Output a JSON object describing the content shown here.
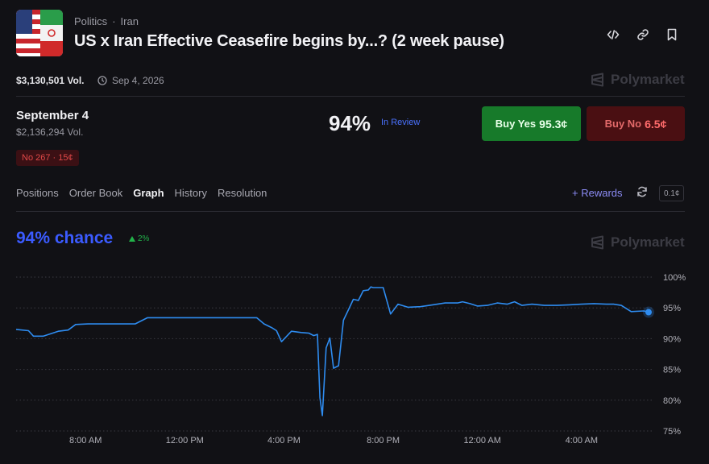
{
  "header": {
    "breadcrumb": [
      "Politics",
      "Iran"
    ],
    "title": "US x Iran Effective Ceasefire begins by...? (2 week pause)",
    "volume": "$3,130,501 Vol.",
    "end_date": "Sep 4, 2026",
    "brand": "Polymarket",
    "icons": [
      "code-icon",
      "link-icon",
      "bookmark-icon"
    ]
  },
  "market": {
    "name": "September 4",
    "volume": "$2,136,294 Vol.",
    "probability": "94%",
    "status": "In Review",
    "buy_yes": {
      "label": "Buy Yes",
      "price": "95.3¢"
    },
    "buy_no": {
      "label": "Buy No",
      "price": "6.5¢"
    },
    "position_badge": "No 267 · 15¢"
  },
  "tabs": [
    "Positions",
    "Order Book",
    "Graph",
    "History",
    "Resolution"
  ],
  "active_tab": "Graph",
  "toolbar": {
    "rewards_label": "+ Rewards",
    "tick_size": "0.1¢"
  },
  "graph": {
    "chance_label": "94% chance",
    "change": "2%",
    "brand": "Polymarket"
  },
  "colors": {
    "line": "#2e8cf0",
    "accent_blue": "#3b5bff",
    "yes": "#177a2a",
    "no": "#4a0f12"
  },
  "chart_data": {
    "type": "line",
    "ylim": [
      75,
      100
    ],
    "xlim": [
      5.2,
      30.8
    ],
    "x_ticks": [
      {
        "x": 8,
        "label": "8:00 AM"
      },
      {
        "x": 12,
        "label": "12:00 PM"
      },
      {
        "x": 16,
        "label": "4:00 PM"
      },
      {
        "x": 20,
        "label": "8:00 PM"
      },
      {
        "x": 24,
        "label": "12:00 AM"
      },
      {
        "x": 28,
        "label": "4:00 AM"
      }
    ],
    "y_ticks": [
      {
        "y": 100,
        "label": "100%"
      },
      {
        "y": 95,
        "label": "95%"
      },
      {
        "y": 90,
        "label": "90%"
      },
      {
        "y": 85,
        "label": "85%"
      },
      {
        "y": 80,
        "label": "80%"
      },
      {
        "y": 75,
        "label": "75%"
      }
    ],
    "series": [
      {
        "x": [
          5.2,
          5.7,
          5.9,
          6.3,
          6.9,
          7.3,
          7.6,
          8.1,
          8.6,
          9,
          9.5,
          10,
          10.5,
          11,
          11.5,
          12,
          12.5,
          13,
          13.5,
          14,
          14.5,
          14.9,
          15.2,
          15.5,
          15.7,
          15.9,
          16.3,
          16.7,
          17,
          17.2,
          17.35,
          17.45,
          17.55,
          17.7,
          17.85,
          18,
          18.2,
          18.4,
          18.6,
          18.8,
          19,
          19.2,
          19.4,
          19.5,
          19.6,
          19.8,
          20,
          20.3,
          20.6,
          21,
          21.5,
          22,
          22.5,
          23,
          23.2,
          23.5,
          23.8,
          24.2,
          24.6,
          25,
          25.3,
          25.6,
          26,
          26.5,
          27,
          27.5,
          28,
          28.5,
          29,
          29.3,
          29.6,
          30,
          30.5,
          30.8
        ],
        "y": [
          91.5,
          91.3,
          90.4,
          90.4,
          91.2,
          91.4,
          92.3,
          92.4,
          92.4,
          92.4,
          92.4,
          92.4,
          93.4,
          93.4,
          93.4,
          93.4,
          93.4,
          93.4,
          93.4,
          93.4,
          93.4,
          93.4,
          92.4,
          91.8,
          91.3,
          89.5,
          91.2,
          91.0,
          90.9,
          90.5,
          90.7,
          80.4,
          77.5,
          88.5,
          90.1,
          85.2,
          85.6,
          93.0,
          94.7,
          96.4,
          96.2,
          97.8,
          97.9,
          98.4,
          98.3,
          98.3,
          98.3,
          94.0,
          95.6,
          95.1,
          95.2,
          95.5,
          95.8,
          95.8,
          96.0,
          95.7,
          95.3,
          95.4,
          95.8,
          95.6,
          96.0,
          95.4,
          95.6,
          95.4,
          95.4,
          95.5,
          95.6,
          95.7,
          95.6,
          95.6,
          95.4,
          94.4,
          94.5,
          94.3
        ]
      }
    ]
  }
}
